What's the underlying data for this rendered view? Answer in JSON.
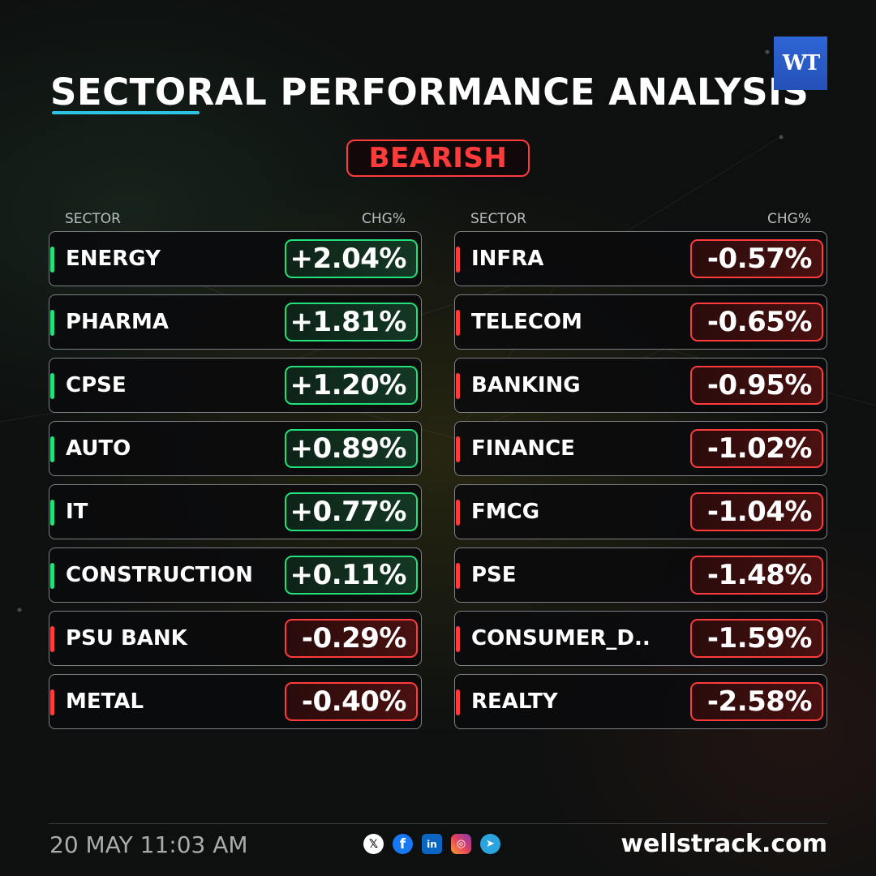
{
  "header": {
    "title": "SECTORAL PERFORMANCE ANALYSIS",
    "logo_text": "WT",
    "sentiment": "BEARISH"
  },
  "columns": [
    {
      "header_sector": "SECTOR",
      "header_chg": "CHG%",
      "rows": [
        {
          "sector": "ENERGY",
          "chg": "+2.04%",
          "trend": "up"
        },
        {
          "sector": "PHARMA",
          "chg": "+1.81%",
          "trend": "up"
        },
        {
          "sector": "CPSE",
          "chg": "+1.20%",
          "trend": "up"
        },
        {
          "sector": "AUTO",
          "chg": "+0.89%",
          "trend": "up"
        },
        {
          "sector": "IT",
          "chg": "+0.77%",
          "trend": "up"
        },
        {
          "sector": "CONSTRUCTION",
          "chg": "+0.11%",
          "trend": "up"
        },
        {
          "sector": "PSU BANK",
          "chg": "-0.29%",
          "trend": "down"
        },
        {
          "sector": "METAL",
          "chg": "-0.40%",
          "trend": "down"
        }
      ]
    },
    {
      "header_sector": "SECTOR",
      "header_chg": "CHG%",
      "rows": [
        {
          "sector": "INFRA",
          "chg": "-0.57%",
          "trend": "down"
        },
        {
          "sector": "TELECOM",
          "chg": "-0.65%",
          "trend": "down"
        },
        {
          "sector": "BANKING",
          "chg": "-0.95%",
          "trend": "down"
        },
        {
          "sector": "FINANCE",
          "chg": "-1.02%",
          "trend": "down"
        },
        {
          "sector": "FMCG",
          "chg": "-1.04%",
          "trend": "down"
        },
        {
          "sector": "PSE",
          "chg": "-1.48%",
          "trend": "down"
        },
        {
          "sector": "CONSUMER_D..",
          "chg": "-1.59%",
          "trend": "down"
        },
        {
          "sector": "REALTY",
          "chg": "-2.58%",
          "trend": "down"
        }
      ]
    }
  ],
  "footer": {
    "date": "20 MAY 11:03 AM",
    "website": "wellstrack.com",
    "socials": [
      {
        "name": "x-icon",
        "glyph": "𝕏"
      },
      {
        "name": "facebook-icon",
        "glyph": "f"
      },
      {
        "name": "linkedin-icon",
        "glyph": "in"
      },
      {
        "name": "instagram-icon",
        "glyph": "◎"
      },
      {
        "name": "telegram-icon",
        "glyph": "➤"
      }
    ]
  },
  "colors": {
    "positive": "#22e07a",
    "negative": "#ff3b3b",
    "accent": "#2ec4e6",
    "logo_bg": "#2f65d6"
  }
}
